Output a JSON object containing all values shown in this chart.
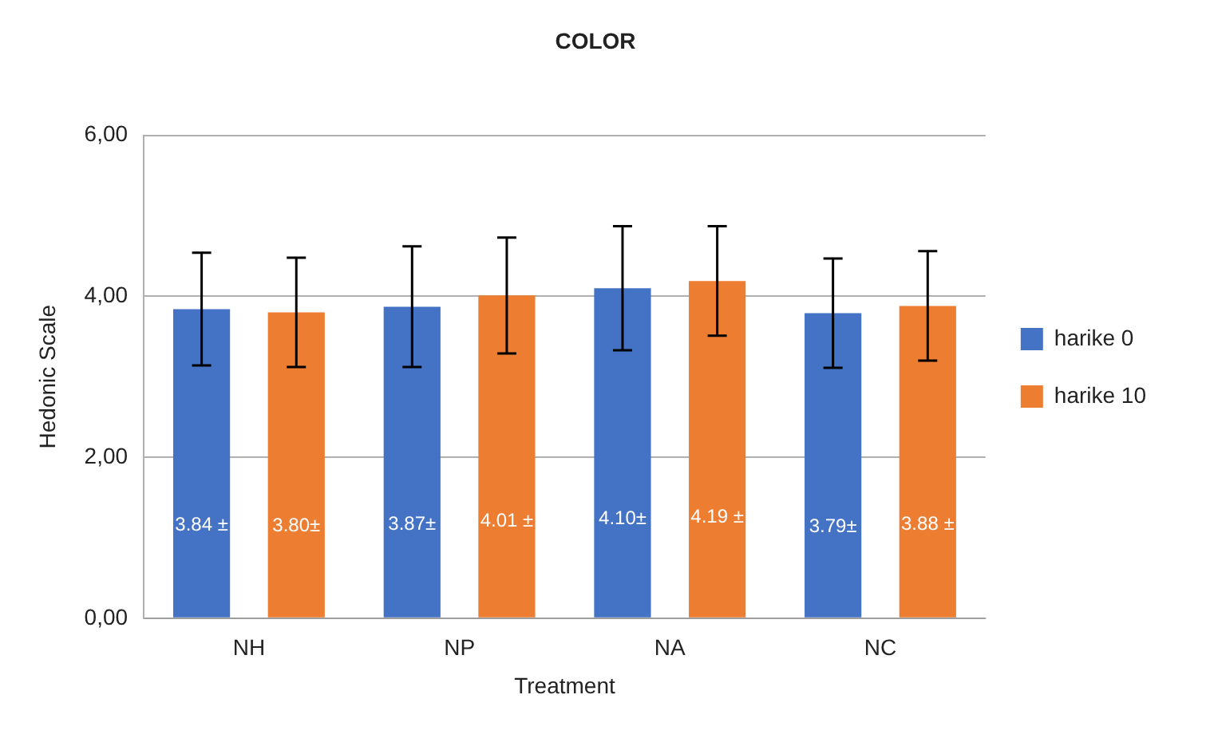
{
  "chart_data": {
    "type": "bar",
    "title": "COLOR",
    "xlabel": "Treatment",
    "ylabel": "Hedonic Scale",
    "categories": [
      "NH",
      "NP",
      "NA",
      "NC"
    ],
    "series": [
      {
        "name": "harike 0",
        "color": "#4472c4",
        "values": [
          3.84,
          3.87,
          4.1,
          3.79
        ],
        "errors": [
          0.7,
          0.75,
          0.77,
          0.68
        ],
        "value_labels": [
          "3.84 ±",
          "3.87±",
          "4.10±",
          "3.79±"
        ]
      },
      {
        "name": "harike 10",
        "color": "#ed7d31",
        "values": [
          3.8,
          4.01,
          4.19,
          3.88
        ],
        "errors": [
          0.68,
          0.72,
          0.68,
          0.68
        ],
        "value_labels": [
          "3.80±",
          "4.01 ±",
          "4.19 ±",
          "3.88 ±"
        ]
      }
    ],
    "ylim": [
      0,
      6
    ],
    "yticks": [
      {
        "value": 0,
        "label": "0,00"
      },
      {
        "value": 2,
        "label": "2,00"
      },
      {
        "value": 4,
        "label": "4,00"
      },
      {
        "value": 6,
        "label": "6,00"
      }
    ],
    "grid": "y",
    "legend": "right"
  }
}
